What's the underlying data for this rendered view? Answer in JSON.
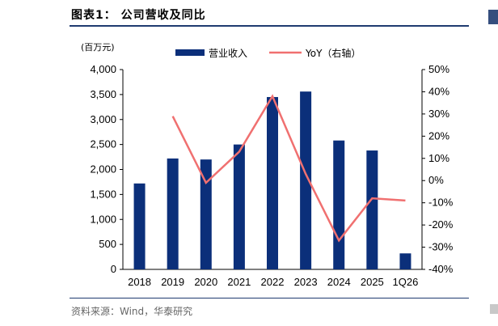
{
  "header": {
    "title": "图表1：  公司营收及同比"
  },
  "footer": {
    "source": "资料来源：Wind，华泰研究"
  },
  "chart_data": {
    "type": "bar",
    "categories": [
      "2018",
      "2019",
      "2020",
      "2021",
      "2022",
      "2023",
      "2024",
      "2025",
      "1Q26"
    ],
    "series": [
      {
        "name": "营业收入",
        "type": "bar",
        "axis": "left",
        "color": "#0b2f7a",
        "values": [
          1720,
          2220,
          2200,
          2500,
          3450,
          3560,
          2580,
          2380,
          320
        ]
      },
      {
        "name": "YoY（右轴）",
        "type": "line",
        "axis": "right",
        "color": "#f07070",
        "values": [
          null,
          29,
          -1,
          13,
          38,
          3,
          -27,
          -8,
          -9
        ]
      }
    ],
    "ylabel": "(百万元)",
    "ylim": [
      0,
      4000
    ],
    "yticks": [
      "0",
      "500",
      "1,000",
      "1,500",
      "2,000",
      "2,500",
      "3,000",
      "3,500",
      "4,000"
    ],
    "y2lim": [
      -40,
      50
    ],
    "y2ticks": [
      "-40%",
      "-30%",
      "-20%",
      "-10%",
      "0%",
      "10%",
      "20%",
      "30%",
      "40%",
      "50%"
    ],
    "legend_position": "top-center"
  }
}
